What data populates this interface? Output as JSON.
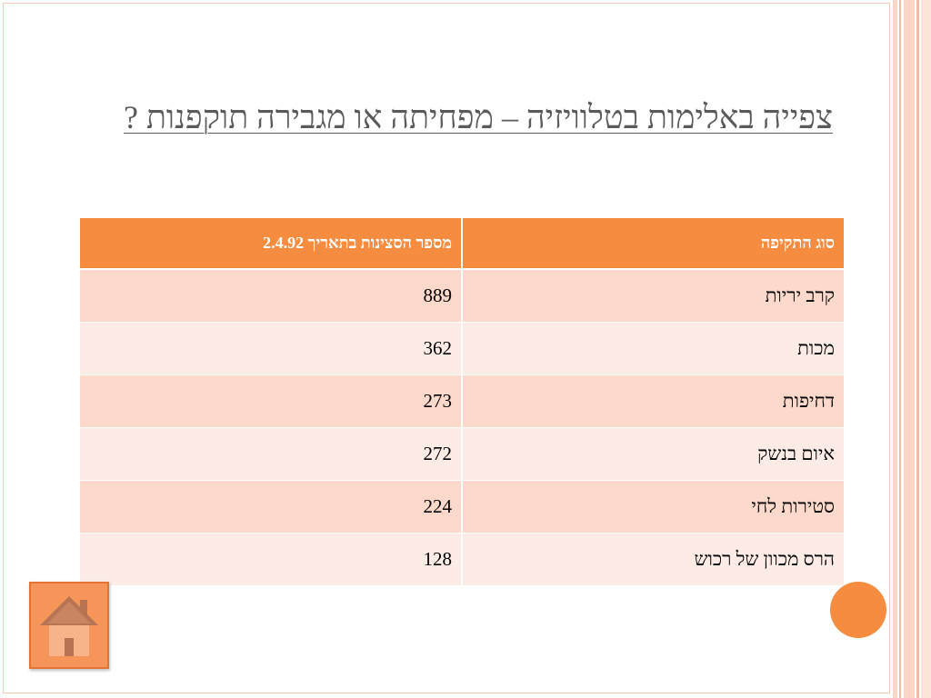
{
  "slide": {
    "title": "צפייה באלימות בטלוויזיה – מפחיתה או מגבירה תוקפנות ?"
  },
  "table": {
    "headers": {
      "type": "סוג התקיפה",
      "count": "מספר הסצינות בתאריך 2.4.92"
    },
    "rows": [
      {
        "type": "קרב יריות",
        "count": "889"
      },
      {
        "type": "מכות",
        "count": "362"
      },
      {
        "type": "דחיפות",
        "count": "273"
      },
      {
        "type": "איום בנשק",
        "count": "272"
      },
      {
        "type": "סטירות לחי",
        "count": "224"
      },
      {
        "type": "הרס מכוון של רכוש",
        "count": "128"
      }
    ]
  },
  "icons": {
    "home": "house-icon"
  },
  "colors": {
    "accent": "#f68c40",
    "row_odd": "#fcd9ca",
    "row_even": "#fdece6",
    "title_text": "#5a5a5a"
  }
}
